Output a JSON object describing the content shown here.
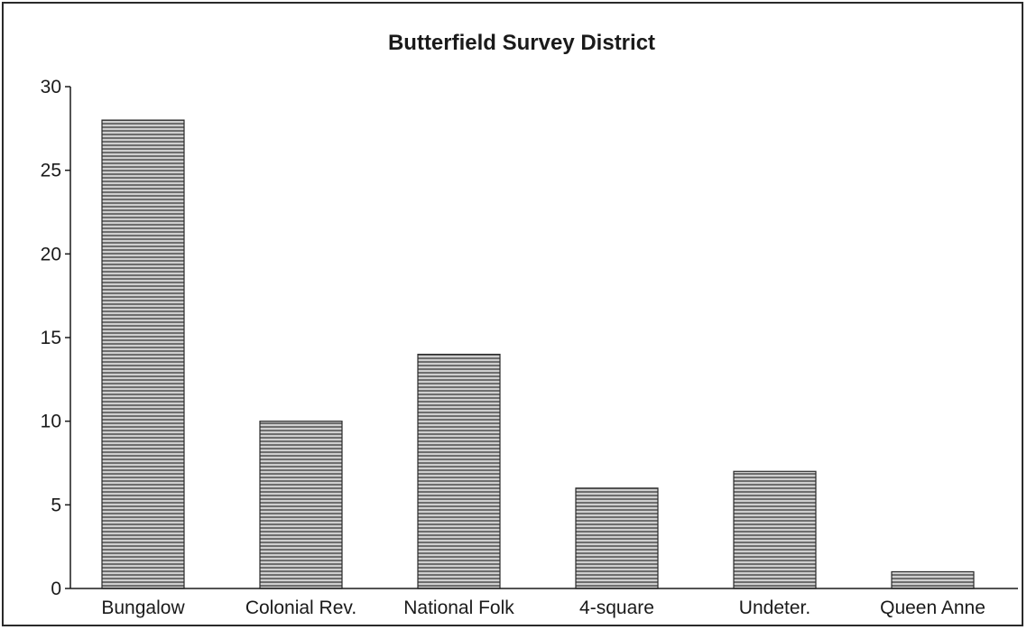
{
  "chart_data": {
    "type": "bar",
    "title": "Butterfield Survey District",
    "categories": [
      "Bungalow",
      "Colonial Rev.",
      "National Folk",
      "4-square",
      "Undeter.",
      "Queen Anne"
    ],
    "values": [
      28,
      10,
      14,
      6,
      7,
      1
    ],
    "ylim": [
      0,
      30
    ],
    "yticks": [
      0,
      5,
      10,
      15,
      20,
      25,
      30
    ],
    "xlabel": "",
    "ylabel": "",
    "grid": false,
    "legend": "none",
    "bar_color": "#8c8c8c"
  }
}
